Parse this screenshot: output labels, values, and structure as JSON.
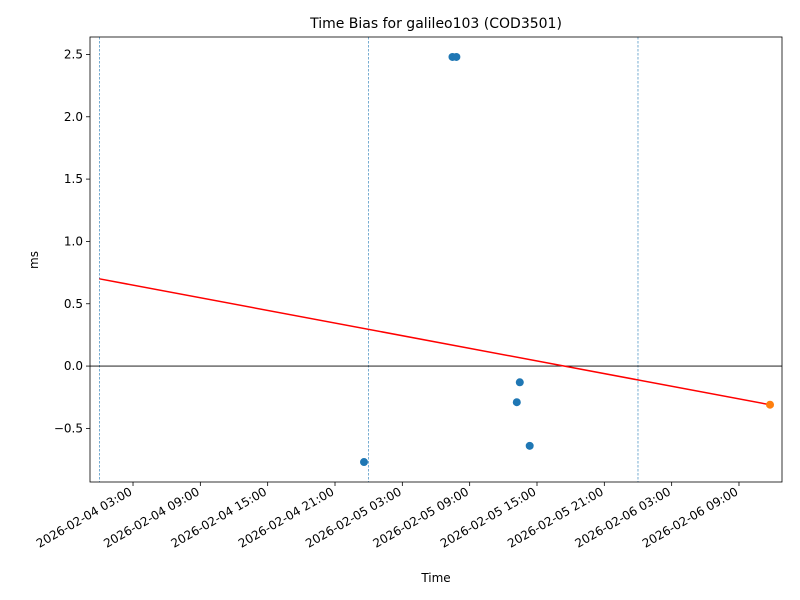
{
  "chart_data": {
    "type": "scatter",
    "title": "Time Bias for galileo103 (COD3501)",
    "x_label": "Time",
    "y_label": "ms",
    "series": [
      {
        "color": "#1f77b4",
        "x": [
          "2026-02-04 23:35",
          "2026-02-05 07:28",
          "2026-02-05 07:49",
          "2026-02-05 13:12",
          "2026-02-05 13:28",
          "2026-02-05 14:21"
        ],
        "values": [
          -0.77,
          2.48,
          2.48,
          -0.29,
          -0.13,
          -0.64
        ]
      },
      {
        "color": "#ff7f0e",
        "x": [
          "2026-02-06 11:46"
        ],
        "values": [
          -0.31
        ]
      }
    ],
    "trend_line": {
      "color": "#ff0000",
      "x": [
        "2026-02-04 00:00",
        "2026-02-06 11:46"
      ],
      "values": [
        0.7,
        -0.31
      ]
    },
    "vertical_lines": {
      "color": "#1f77b4",
      "x": [
        "2026-02-04 00:00",
        "2026-02-05 00:00",
        "2026-02-06 00:00"
      ]
    },
    "horizontal_line": {
      "color": "#000000",
      "value": 0
    },
    "xlim": [
      "2026-02-03 23:10",
      "2026-02-06 12:50"
    ],
    "xticks": [
      "2026-02-04 03:00",
      "2026-02-04 09:00",
      "2026-02-04 15:00",
      "2026-02-04 21:00",
      "2026-02-05 03:00",
      "2026-02-05 09:00",
      "2026-02-05 15:00",
      "2026-02-05 21:00",
      "2026-02-06 03:00",
      "2026-02-06 09:00"
    ],
    "ylim": [
      -0.93,
      2.64
    ],
    "yticks": [
      {
        "value": -0.5,
        "label": "−0.5"
      },
      {
        "value": 0,
        "label": "0.0"
      },
      0.5,
      {
        "value": 1,
        "label": "1.0"
      },
      1.5,
      {
        "value": 2,
        "label": "2.0"
      },
      2.5
    ]
  }
}
